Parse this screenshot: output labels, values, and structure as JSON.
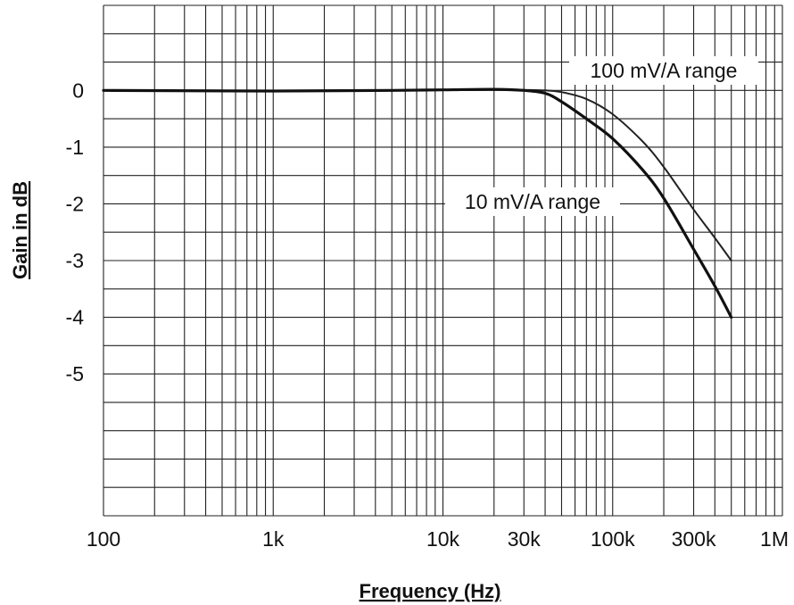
{
  "chart_data": {
    "type": "line",
    "xlabel": "Frequency (Hz)",
    "ylabel": "Gain in dB",
    "x_scale": "log",
    "xlim": [
      100,
      1000000
    ],
    "ylim": [
      -7.5,
      1.5
    ],
    "x_ticks": [
      {
        "value": 100,
        "label": "100"
      },
      {
        "value": 1000,
        "label": "1k"
      },
      {
        "value": 10000,
        "label": "10k"
      },
      {
        "value": 30000,
        "label": "30k"
      },
      {
        "value": 100000,
        "label": "100k"
      },
      {
        "value": 300000,
        "label": "300k"
      },
      {
        "value": 1000000,
        "label": "1M"
      }
    ],
    "y_ticks": [
      {
        "value": 0,
        "label": "0"
      },
      {
        "value": -1,
        "label": "-1"
      },
      {
        "value": -2,
        "label": "-2"
      },
      {
        "value": -3,
        "label": "-3"
      },
      {
        "value": -4,
        "label": "-4"
      },
      {
        "value": -5,
        "label": "-5"
      }
    ],
    "grid": true,
    "y_grid_step": 0.5,
    "series": [
      {
        "name": "100 mV/A range",
        "color": "#222222",
        "x": [
          100,
          1000,
          5000,
          10000,
          20000,
          30000,
          40000,
          50000,
          70000,
          100000,
          150000,
          200000,
          300000,
          400000,
          500000
        ],
        "y": [
          0,
          -0.01,
          0,
          0.01,
          0.02,
          0.01,
          0,
          -0.03,
          -0.15,
          -0.42,
          -0.9,
          -1.35,
          -2.1,
          -2.6,
          -3.0
        ]
      },
      {
        "name": "10 mV/A range",
        "color": "#111111",
        "x": [
          100,
          1000,
          5000,
          10000,
          20000,
          30000,
          40000,
          50000,
          70000,
          100000,
          150000,
          200000,
          300000,
          400000,
          500000
        ],
        "y": [
          0,
          -0.01,
          0,
          0.01,
          0.02,
          0,
          -0.05,
          -0.2,
          -0.5,
          -0.85,
          -1.4,
          -1.9,
          -2.8,
          -3.45,
          -4.0
        ]
      }
    ]
  }
}
